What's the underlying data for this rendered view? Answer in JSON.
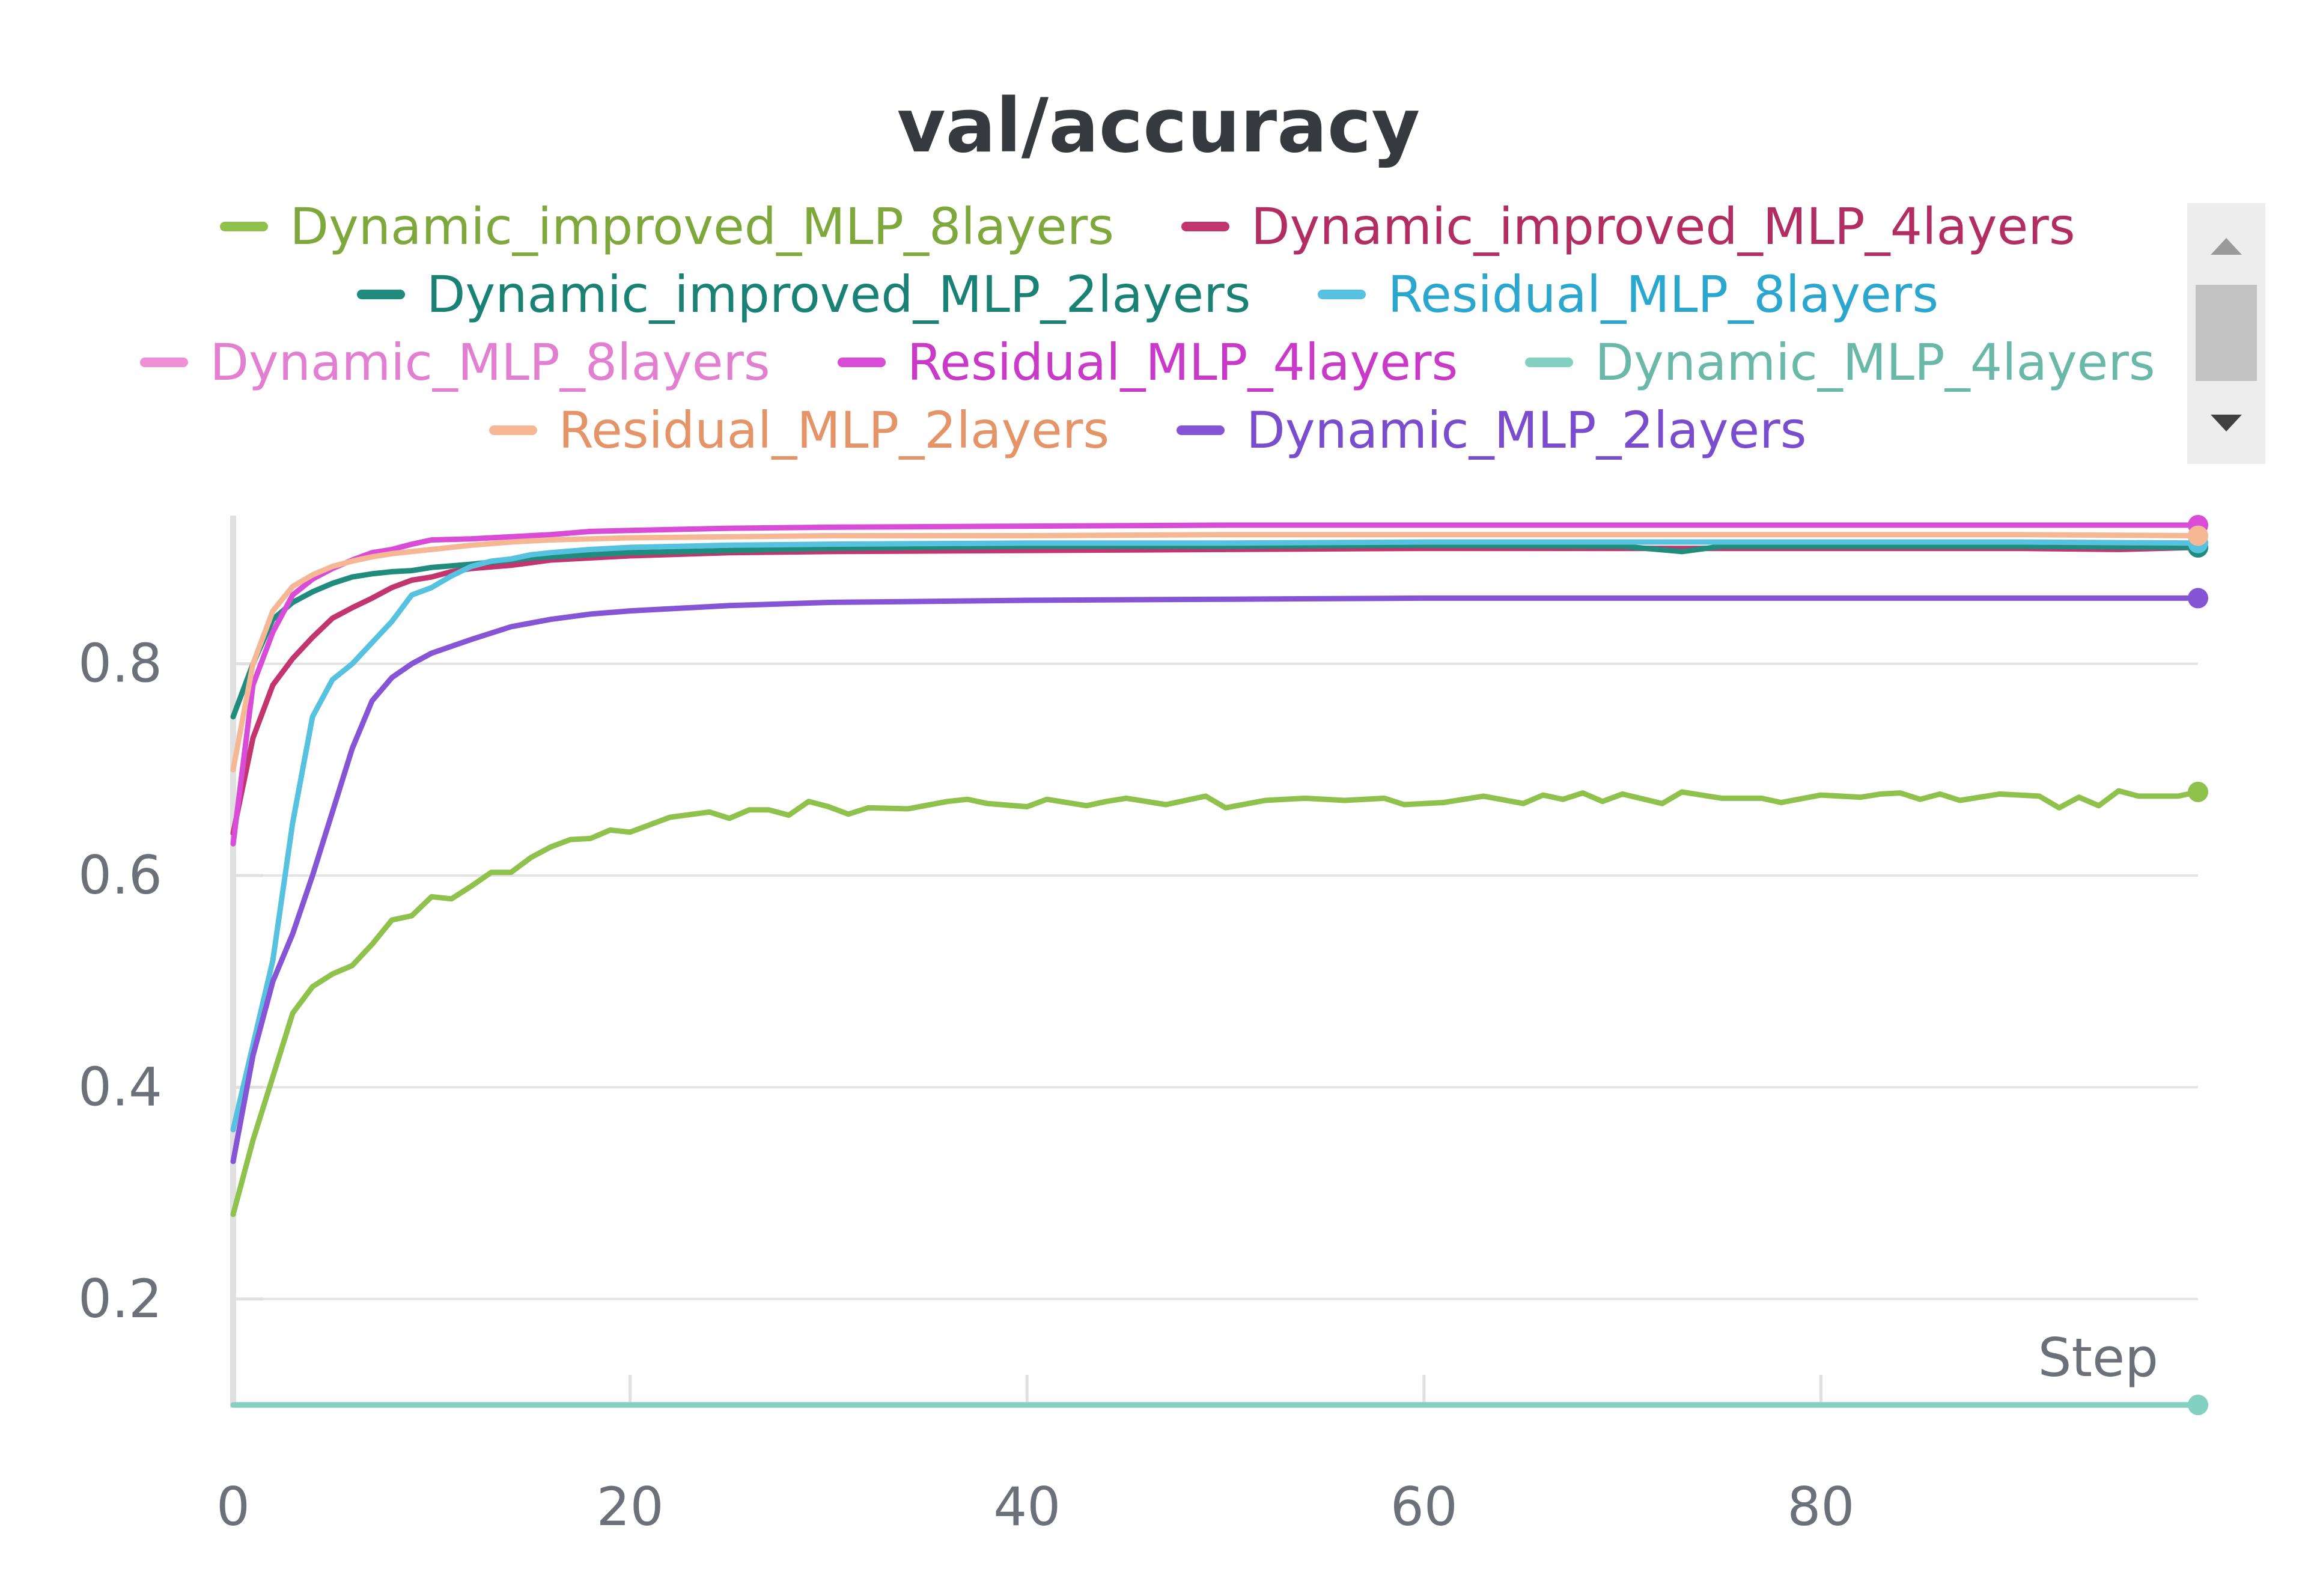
{
  "chart_data": {
    "type": "line",
    "title": "val/accuracy",
    "xlabel": "Step",
    "ylabel": "",
    "xlim": [
      0,
      99
    ],
    "ylim": [
      0.1,
      0.94
    ],
    "x_ticks": [
      "0",
      "20",
      "40",
      "60",
      "80"
    ],
    "x_tick_values": [
      0,
      20,
      40,
      60,
      80
    ],
    "y_ticks": [
      "0.2",
      "0.4",
      "0.6",
      "0.8"
    ],
    "y_tick_values": [
      0.2,
      0.4,
      0.6,
      0.8
    ],
    "grid": "horizontal",
    "legend_position": "top",
    "series": [
      {
        "name": "Dynamic_improved_MLP_8layers",
        "color": "#8fc24c",
        "label_color": "#7ea83c",
        "points": [
          [
            0,
            0.28
          ],
          [
            1,
            0.35
          ],
          [
            2,
            0.41
          ],
          [
            3,
            0.47
          ],
          [
            4,
            0.495
          ],
          [
            5,
            0.507
          ],
          [
            6,
            0.515
          ],
          [
            7,
            0.535
          ],
          [
            8,
            0.558
          ],
          [
            9,
            0.562
          ],
          [
            10,
            0.58
          ],
          [
            11,
            0.578
          ],
          [
            12,
            0.59
          ],
          [
            13,
            0.603
          ],
          [
            14,
            0.603
          ],
          [
            15,
            0.617
          ],
          [
            16,
            0.627
          ],
          [
            17,
            0.634
          ],
          [
            18,
            0.635
          ],
          [
            19,
            0.643
          ],
          [
            20,
            0.641
          ],
          [
            22,
            0.655
          ],
          [
            24,
            0.66
          ],
          [
            25,
            0.654
          ],
          [
            26,
            0.662
          ],
          [
            27,
            0.662
          ],
          [
            28,
            0.657
          ],
          [
            29,
            0.67
          ],
          [
            30,
            0.665
          ],
          [
            31,
            0.658
          ],
          [
            32,
            0.664
          ],
          [
            34,
            0.663
          ],
          [
            36,
            0.67
          ],
          [
            37,
            0.672
          ],
          [
            38,
            0.668
          ],
          [
            40,
            0.665
          ],
          [
            41,
            0.672
          ],
          [
            43,
            0.666
          ],
          [
            44,
            0.67
          ],
          [
            45,
            0.673
          ],
          [
            47,
            0.667
          ],
          [
            49,
            0.675
          ],
          [
            50,
            0.664
          ],
          [
            52,
            0.671
          ],
          [
            54,
            0.673
          ],
          [
            56,
            0.671
          ],
          [
            58,
            0.673
          ],
          [
            59,
            0.667
          ],
          [
            61,
            0.669
          ],
          [
            63,
            0.675
          ],
          [
            65,
            0.668
          ],
          [
            66,
            0.676
          ],
          [
            67,
            0.672
          ],
          [
            68,
            0.678
          ],
          [
            69,
            0.67
          ],
          [
            70,
            0.677
          ],
          [
            72,
            0.668
          ],
          [
            73,
            0.679
          ],
          [
            75,
            0.673
          ],
          [
            77,
            0.673
          ],
          [
            78,
            0.669
          ],
          [
            80,
            0.676
          ],
          [
            82,
            0.674
          ],
          [
            83,
            0.677
          ],
          [
            84,
            0.678
          ],
          [
            85,
            0.672
          ],
          [
            86,
            0.677
          ],
          [
            87,
            0.671
          ],
          [
            89,
            0.677
          ],
          [
            91,
            0.675
          ],
          [
            92,
            0.664
          ],
          [
            93,
            0.674
          ],
          [
            94,
            0.666
          ],
          [
            95,
            0.68
          ],
          [
            96,
            0.675
          ],
          [
            98,
            0.675
          ],
          [
            99,
            0.679
          ]
        ]
      },
      {
        "name": "Dynamic_improved_MLP_4layers",
        "color": "#c2356e",
        "label_color": "#b22d62",
        "points": [
          [
            0,
            0.64
          ],
          [
            1,
            0.73
          ],
          [
            2,
            0.78
          ],
          [
            3,
            0.805
          ],
          [
            4,
            0.825
          ],
          [
            5,
            0.843
          ],
          [
            6,
            0.853
          ],
          [
            7,
            0.862
          ],
          [
            8,
            0.872
          ],
          [
            9,
            0.879
          ],
          [
            10,
            0.882
          ],
          [
            11,
            0.887
          ],
          [
            12,
            0.89
          ],
          [
            14,
            0.893
          ],
          [
            16,
            0.898
          ],
          [
            18,
            0.9
          ],
          [
            20,
            0.902
          ],
          [
            25,
            0.905
          ],
          [
            30,
            0.906
          ],
          [
            40,
            0.907
          ],
          [
            50,
            0.908
          ],
          [
            60,
            0.909
          ],
          [
            70,
            0.909
          ],
          [
            80,
            0.909
          ],
          [
            90,
            0.909
          ],
          [
            95,
            0.908
          ],
          [
            99,
            0.91
          ]
        ]
      },
      {
        "name": "Dynamic_improved_MLP_2layers",
        "color": "#1f8c7d",
        "label_color": "#1a8275",
        "points": [
          [
            0,
            0.75
          ],
          [
            1,
            0.8
          ],
          [
            2,
            0.842
          ],
          [
            3,
            0.858
          ],
          [
            4,
            0.868
          ],
          [
            5,
            0.876
          ],
          [
            6,
            0.882
          ],
          [
            7,
            0.885
          ],
          [
            8,
            0.887
          ],
          [
            9,
            0.888
          ],
          [
            10,
            0.891
          ],
          [
            12,
            0.894
          ],
          [
            15,
            0.9
          ],
          [
            20,
            0.905
          ],
          [
            25,
            0.907
          ],
          [
            30,
            0.909
          ],
          [
            40,
            0.911
          ],
          [
            50,
            0.911
          ],
          [
            60,
            0.912
          ],
          [
            70,
            0.911
          ],
          [
            73,
            0.906
          ],
          [
            75,
            0.911
          ],
          [
            80,
            0.911
          ],
          [
            90,
            0.911
          ],
          [
            99,
            0.91
          ]
        ]
      },
      {
        "name": "Residual_MLP_8layers",
        "color": "#56c2e0",
        "label_color": "#2ba6cf",
        "points": [
          [
            0,
            0.36
          ],
          [
            1,
            0.44
          ],
          [
            2,
            0.52
          ],
          [
            3,
            0.65
          ],
          [
            4,
            0.75
          ],
          [
            5,
            0.785
          ],
          [
            6,
            0.8
          ],
          [
            7,
            0.82
          ],
          [
            8,
            0.84
          ],
          [
            9,
            0.865
          ],
          [
            10,
            0.872
          ],
          [
            11,
            0.883
          ],
          [
            12,
            0.892
          ],
          [
            13,
            0.897
          ],
          [
            14,
            0.899
          ],
          [
            15,
            0.903
          ],
          [
            16,
            0.905
          ],
          [
            18,
            0.908
          ],
          [
            20,
            0.91
          ],
          [
            25,
            0.912
          ],
          [
            30,
            0.913
          ],
          [
            40,
            0.914
          ],
          [
            50,
            0.914
          ],
          [
            60,
            0.915
          ],
          [
            70,
            0.915
          ],
          [
            80,
            0.915
          ],
          [
            90,
            0.915
          ],
          [
            99,
            0.914
          ]
        ]
      },
      {
        "name": "Dynamic_MLP_8layers",
        "color": "#f08fd8",
        "label_color": "#e27fd0",
        "points": [
          [
            0,
            0.1
          ],
          [
            99,
            0.1
          ]
        ]
      },
      {
        "name": "Residual_MLP_4layers",
        "color": "#d84cd8",
        "label_color": "#c93ac8",
        "points": [
          [
            0,
            0.63
          ],
          [
            1,
            0.78
          ],
          [
            2,
            0.83
          ],
          [
            3,
            0.865
          ],
          [
            4,
            0.88
          ],
          [
            5,
            0.89
          ],
          [
            6,
            0.898
          ],
          [
            7,
            0.905
          ],
          [
            8,
            0.908
          ],
          [
            9,
            0.913
          ],
          [
            10,
            0.917
          ],
          [
            12,
            0.918
          ],
          [
            14,
            0.92
          ],
          [
            16,
            0.922
          ],
          [
            18,
            0.925
          ],
          [
            20,
            0.926
          ],
          [
            25,
            0.928
          ],
          [
            30,
            0.929
          ],
          [
            40,
            0.93
          ],
          [
            50,
            0.931
          ],
          [
            60,
            0.931
          ],
          [
            70,
            0.931
          ],
          [
            80,
            0.931
          ],
          [
            90,
            0.931
          ],
          [
            99,
            0.931
          ]
        ]
      },
      {
        "name": "Dynamic_MLP_4layers",
        "color": "#83d1c0",
        "label_color": "#6ab8a8",
        "points": [
          [
            0,
            0.1
          ],
          [
            99,
            0.1
          ]
        ]
      },
      {
        "name": "Residual_MLP_2layers",
        "color": "#f6b894",
        "label_color": "#e59468",
        "points": [
          [
            0,
            0.7
          ],
          [
            1,
            0.8
          ],
          [
            2,
            0.85
          ],
          [
            3,
            0.873
          ],
          [
            4,
            0.884
          ],
          [
            5,
            0.892
          ],
          [
            6,
            0.897
          ],
          [
            7,
            0.901
          ],
          [
            8,
            0.904
          ],
          [
            10,
            0.908
          ],
          [
            12,
            0.912
          ],
          [
            14,
            0.915
          ],
          [
            16,
            0.917
          ],
          [
            20,
            0.919
          ],
          [
            25,
            0.92
          ],
          [
            30,
            0.921
          ],
          [
            40,
            0.921
          ],
          [
            50,
            0.922
          ],
          [
            60,
            0.922
          ],
          [
            70,
            0.922
          ],
          [
            80,
            0.922
          ],
          [
            90,
            0.922
          ],
          [
            99,
            0.921
          ]
        ]
      },
      {
        "name": "Dynamic_MLP_2layers",
        "color": "#8555d6",
        "label_color": "#7a4cce",
        "points": [
          [
            0,
            0.33
          ],
          [
            1,
            0.43
          ],
          [
            2,
            0.5
          ],
          [
            3,
            0.545
          ],
          [
            4,
            0.6
          ],
          [
            5,
            0.66
          ],
          [
            6,
            0.72
          ],
          [
            7,
            0.765
          ],
          [
            8,
            0.787
          ],
          [
            9,
            0.8
          ],
          [
            10,
            0.81
          ],
          [
            12,
            0.823
          ],
          [
            14,
            0.835
          ],
          [
            16,
            0.842
          ],
          [
            18,
            0.847
          ],
          [
            20,
            0.85
          ],
          [
            25,
            0.855
          ],
          [
            30,
            0.858
          ],
          [
            40,
            0.86
          ],
          [
            50,
            0.861
          ],
          [
            60,
            0.862
          ],
          [
            70,
            0.862
          ],
          [
            80,
            0.862
          ],
          [
            90,
            0.862
          ],
          [
            99,
            0.862
          ]
        ]
      }
    ]
  },
  "legend_rows": [
    [
      0,
      1
    ],
    [
      2,
      3
    ],
    [
      4,
      5,
      6
    ],
    [
      7,
      8
    ]
  ],
  "scrollbar": {
    "up_icon": "triangle-up",
    "down_icon": "triangle-down"
  }
}
